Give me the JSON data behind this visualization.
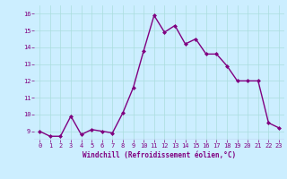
{
  "x": [
    0,
    1,
    2,
    3,
    4,
    5,
    6,
    7,
    8,
    9,
    10,
    11,
    12,
    13,
    14,
    15,
    16,
    17,
    18,
    19,
    20,
    21,
    22,
    23
  ],
  "y": [
    9.0,
    8.7,
    8.7,
    9.9,
    8.8,
    9.1,
    9.0,
    8.9,
    10.1,
    11.6,
    13.8,
    15.9,
    14.9,
    15.3,
    14.2,
    14.5,
    13.6,
    13.6,
    12.9,
    12.0,
    12.0,
    12.0,
    9.5,
    9.2
  ],
  "line_color": "#800080",
  "marker": "D",
  "marker_size": 2.0,
  "linewidth": 1.0,
  "xlabel": "Windchill (Refroidissement éolien,°C)",
  "xlim": [
    -0.5,
    23.5
  ],
  "ylim": [
    8.5,
    16.5
  ],
  "yticks": [
    9,
    10,
    11,
    12,
    13,
    14,
    15,
    16
  ],
  "xticks": [
    0,
    1,
    2,
    3,
    4,
    5,
    6,
    7,
    8,
    9,
    10,
    11,
    12,
    13,
    14,
    15,
    16,
    17,
    18,
    19,
    20,
    21,
    22,
    23
  ],
  "bg_color": "#cceeff",
  "grid_color": "#aadddd",
  "tick_color": "#800080",
  "label_color": "#800080",
  "tick_fontsize": 5.0,
  "xlabel_fontsize": 5.5
}
